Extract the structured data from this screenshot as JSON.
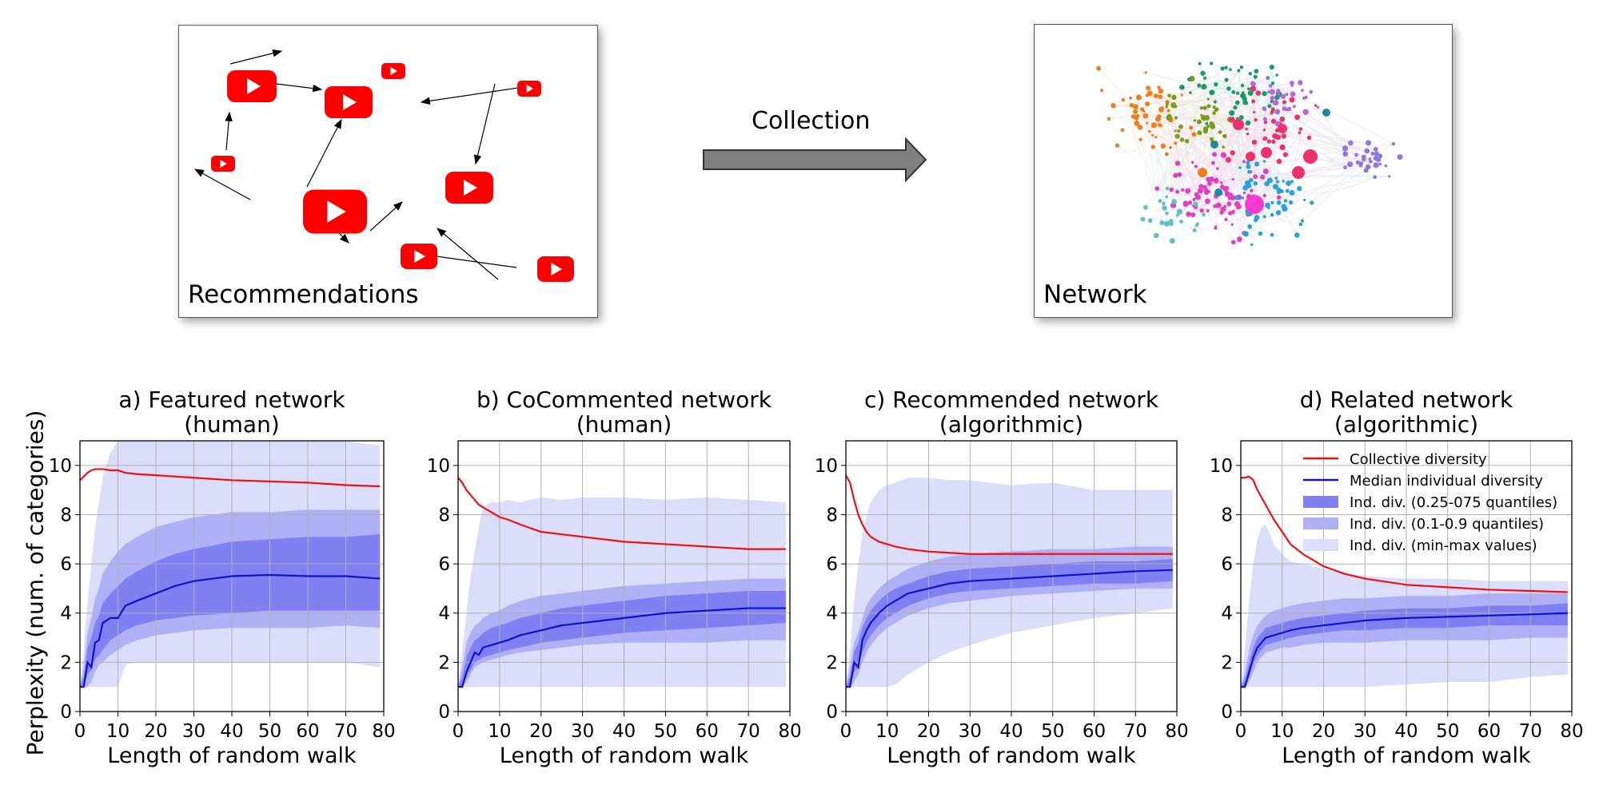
{
  "top": {
    "recommendations_label": "Recommendations",
    "network_label": "Network",
    "collection_label": "Collection"
  },
  "colors": {
    "collective": "#ee1111",
    "individual": "#1111cc",
    "band_quartile": "#8080f2",
    "band_decile": "#b0b0f6",
    "band_minmax": "#dcdcfb",
    "youtube_red": "#ff0000"
  },
  "ylabel": "Perplexity (num. of categories)",
  "legend": {
    "collective": "Collective diversity",
    "median": "Median individual diversity",
    "quartile": "Ind. div. (0.25-075 quantiles)",
    "decile": "Ind. div. (0.1-0.9 quantiles)",
    "minmax": "Ind. div. (min-max values)"
  },
  "chart_data": [
    {
      "type": "line",
      "title_line1": "a) Featured network",
      "title_line2": "(human)",
      "xlabel": "Length of random walk",
      "xlim": [
        0,
        80
      ],
      "ylim": [
        0,
        11
      ],
      "xticks": [
        0,
        10,
        20,
        30,
        40,
        50,
        60,
        70,
        80
      ],
      "yticks": [
        0,
        2,
        4,
        6,
        8,
        10
      ],
      "grid": true,
      "x": [
        0,
        1,
        2,
        3,
        4,
        5,
        6,
        8,
        10,
        12,
        15,
        20,
        25,
        30,
        40,
        50,
        60,
        70,
        79
      ],
      "series": [
        {
          "role": "collective",
          "values": [
            9.4,
            9.55,
            9.7,
            9.8,
            9.85,
            9.85,
            9.85,
            9.8,
            9.8,
            9.7,
            9.65,
            9.6,
            9.55,
            9.5,
            9.4,
            9.35,
            9.3,
            9.2,
            9.15
          ]
        },
        {
          "role": "median",
          "values": [
            1,
            1,
            2.0,
            1.8,
            2.8,
            2.9,
            3.6,
            3.8,
            3.8,
            4.3,
            4.5,
            4.8,
            5.1,
            5.3,
            5.5,
            5.55,
            5.5,
            5.5,
            5.4
          ]
        },
        {
          "role": "quartile",
          "lower": [
            1,
            1,
            1.5,
            1.7,
            2.1,
            2.3,
            2.5,
            2.9,
            3.1,
            3.3,
            3.5,
            3.7,
            3.8,
            3.9,
            4.0,
            4.1,
            4.1,
            4.1,
            4.1
          ],
          "upper": [
            1,
            1.4,
            2.6,
            3.0,
            3.6,
            3.9,
            4.4,
            4.8,
            5.1,
            5.4,
            5.7,
            6.1,
            6.4,
            6.6,
            6.9,
            7.0,
            7.1,
            7.1,
            7.2
          ]
        },
        {
          "role": "decile",
          "lower": [
            1,
            1,
            1,
            1.2,
            1.6,
            1.9,
            2.0,
            2.3,
            2.5,
            2.7,
            2.9,
            3.1,
            3.2,
            3.3,
            3.4,
            3.4,
            3.4,
            3.5,
            3.4
          ],
          "upper": [
            1,
            1.8,
            3.2,
            3.8,
            4.6,
            5.0,
            5.6,
            6.1,
            6.5,
            6.8,
            7.1,
            7.5,
            7.7,
            7.9,
            8.1,
            8.1,
            8.2,
            8.2,
            8.2
          ]
        },
        {
          "role": "minmax",
          "lower": [
            1,
            1,
            1,
            1,
            1,
            1,
            1,
            1,
            1,
            1.9,
            2,
            2,
            2,
            2,
            2,
            2,
            2,
            2,
            1.8
          ],
          "upper": [
            1,
            2.5,
            4.5,
            6,
            7.5,
            8.5,
            9.5,
            10.5,
            11,
            11,
            11,
            11,
            11,
            11,
            11,
            11,
            11,
            11,
            10.8
          ]
        }
      ]
    },
    {
      "type": "line",
      "title_line1": "b) CoCommented network",
      "title_line2": "(human)",
      "xlabel": "Length of random walk",
      "xlim": [
        0,
        80
      ],
      "ylim": [
        0,
        11
      ],
      "xticks": [
        0,
        10,
        20,
        30,
        40,
        50,
        60,
        70,
        80
      ],
      "yticks": [
        0,
        2,
        4,
        6,
        8,
        10
      ],
      "grid": true,
      "x": [
        0,
        1,
        2,
        3,
        4,
        5,
        6,
        8,
        10,
        12,
        15,
        20,
        25,
        30,
        40,
        50,
        60,
        70,
        79
      ],
      "series": [
        {
          "role": "collective",
          "values": [
            9.5,
            9.3,
            9.0,
            8.8,
            8.6,
            8.4,
            8.3,
            8.1,
            7.9,
            7.8,
            7.6,
            7.3,
            7.2,
            7.1,
            6.9,
            6.8,
            6.7,
            6.6,
            6.6
          ]
        },
        {
          "role": "median",
          "values": [
            1,
            1,
            1.6,
            2.0,
            2.4,
            2.3,
            2.6,
            2.7,
            2.8,
            2.9,
            3.1,
            3.3,
            3.5,
            3.6,
            3.8,
            4.0,
            4.1,
            4.2,
            4.2
          ]
        },
        {
          "role": "quartile",
          "lower": [
            1,
            1,
            1.4,
            1.7,
            2.0,
            2.1,
            2.2,
            2.3,
            2.4,
            2.5,
            2.6,
            2.8,
            2.9,
            3.0,
            3.2,
            3.3,
            3.4,
            3.5,
            3.6
          ],
          "upper": [
            1,
            1.4,
            2.2,
            2.6,
            2.9,
            3.0,
            3.2,
            3.4,
            3.5,
            3.6,
            3.8,
            4.0,
            4.2,
            4.3,
            4.5,
            4.7,
            4.8,
            4.9,
            4.9
          ]
        },
        {
          "role": "decile",
          "lower": [
            1,
            1,
            1.2,
            1.5,
            1.8,
            1.9,
            2.0,
            2.1,
            2.2,
            2.3,
            2.4,
            2.5,
            2.6,
            2.7,
            2.8,
            2.8,
            2.8,
            2.9,
            2.9
          ],
          "upper": [
            1,
            1.8,
            2.8,
            3.2,
            3.5,
            3.6,
            3.8,
            4.0,
            4.1,
            4.3,
            4.5,
            4.7,
            4.8,
            4.9,
            5.1,
            5.2,
            5.3,
            5.4,
            5.4
          ]
        },
        {
          "role": "minmax",
          "lower": [
            1,
            1,
            1,
            1,
            1,
            1,
            1,
            1,
            1,
            1,
            1,
            1,
            1,
            1,
            1,
            1,
            1,
            1,
            1
          ],
          "upper": [
            1,
            2.5,
            4,
            5.5,
            6.5,
            7.5,
            8.3,
            8.5,
            8.5,
            8.6,
            8.5,
            8.7,
            8.6,
            8.7,
            8.7,
            8.6,
            8.7,
            8.6,
            8.5
          ]
        }
      ]
    },
    {
      "type": "line",
      "title_line1": "c) Recommended network",
      "title_line2": "(algorithmic)",
      "xlabel": "Length of random walk",
      "xlim": [
        0,
        80
      ],
      "ylim": [
        0,
        11
      ],
      "xticks": [
        0,
        10,
        20,
        30,
        40,
        50,
        60,
        70,
        80
      ],
      "yticks": [
        0,
        2,
        4,
        6,
        8,
        10
      ],
      "grid": true,
      "x": [
        0,
        1,
        2,
        3,
        4,
        5,
        6,
        8,
        10,
        12,
        15,
        20,
        25,
        30,
        40,
        50,
        60,
        70,
        79
      ],
      "series": [
        {
          "role": "collective",
          "values": [
            9.6,
            9.3,
            8.6,
            8.0,
            7.6,
            7.3,
            7.1,
            6.9,
            6.8,
            6.7,
            6.6,
            6.5,
            6.45,
            6.4,
            6.4,
            6.4,
            6.4,
            6.4,
            6.4
          ]
        },
        {
          "role": "median",
          "values": [
            1,
            1,
            2.0,
            1.8,
            2.9,
            3.3,
            3.6,
            4.0,
            4.3,
            4.5,
            4.8,
            5.0,
            5.2,
            5.3,
            5.4,
            5.5,
            5.6,
            5.7,
            5.75
          ]
        },
        {
          "role": "quartile",
          "lower": [
            1,
            1,
            1.6,
            1.8,
            2.4,
            2.8,
            3.1,
            3.5,
            3.8,
            4.0,
            4.3,
            4.6,
            4.8,
            4.9,
            5.0,
            5.1,
            5.2,
            5.2,
            5.3
          ],
          "upper": [
            1,
            1.4,
            2.4,
            2.8,
            3.4,
            3.8,
            4.1,
            4.5,
            4.8,
            5.0,
            5.2,
            5.5,
            5.7,
            5.8,
            5.9,
            6.0,
            6.1,
            6.1,
            6.2
          ]
        },
        {
          "role": "decile",
          "lower": [
            1,
            1,
            1.2,
            1.5,
            2.0,
            2.4,
            2.7,
            3.1,
            3.4,
            3.6,
            3.9,
            4.2,
            4.4,
            4.5,
            4.7,
            4.8,
            4.9,
            5.0,
            5.0
          ],
          "upper": [
            1,
            1.8,
            2.8,
            3.2,
            3.8,
            4.3,
            4.6,
            5.0,
            5.3,
            5.5,
            5.8,
            6.1,
            6.3,
            6.4,
            6.5,
            6.6,
            6.6,
            6.7,
            6.7
          ]
        },
        {
          "role": "minmax",
          "lower": [
            1,
            1,
            1,
            1,
            1,
            1,
            1,
            1,
            1,
            1.1,
            1.5,
            2.0,
            2.4,
            2.7,
            3.2,
            3.5,
            3.8,
            4.0,
            4.2
          ],
          "upper": [
            1,
            2.5,
            4.5,
            6,
            7.2,
            8,
            8.5,
            9,
            9.2,
            9.3,
            9.5,
            9.5,
            9.4,
            9.4,
            9.2,
            9.3,
            9.0,
            9.0,
            9.0
          ]
        }
      ]
    },
    {
      "type": "line",
      "title_line1": "d) Related network",
      "title_line2": "(algorithmic)",
      "xlabel": "Length of random walk",
      "xlim": [
        0,
        80
      ],
      "ylim": [
        0,
        11
      ],
      "xticks": [
        0,
        10,
        20,
        30,
        40,
        50,
        60,
        70,
        80
      ],
      "yticks": [
        0,
        2,
        4,
        6,
        8,
        10
      ],
      "grid": true,
      "legend_position": "top-right",
      "x": [
        0,
        1,
        2,
        3,
        4,
        5,
        6,
        8,
        10,
        12,
        15,
        20,
        25,
        30,
        40,
        50,
        60,
        70,
        79
      ],
      "series": [
        {
          "role": "collective",
          "values": [
            9.5,
            9.5,
            9.55,
            9.4,
            9.0,
            8.7,
            8.4,
            7.8,
            7.3,
            6.8,
            6.4,
            5.9,
            5.6,
            5.4,
            5.15,
            5.05,
            4.95,
            4.9,
            4.85
          ]
        },
        {
          "role": "median",
          "values": [
            1,
            1,
            1.6,
            2.2,
            2.6,
            2.8,
            3.0,
            3.1,
            3.2,
            3.3,
            3.4,
            3.5,
            3.6,
            3.7,
            3.8,
            3.85,
            3.9,
            3.95,
            4.0
          ]
        },
        {
          "role": "quartile",
          "lower": [
            1,
            1,
            1.4,
            1.9,
            2.3,
            2.5,
            2.7,
            2.8,
            2.9,
            3.0,
            3.1,
            3.2,
            3.3,
            3.3,
            3.4,
            3.4,
            3.5,
            3.5,
            3.5
          ],
          "upper": [
            1,
            1.3,
            2.0,
            2.6,
            3.0,
            3.2,
            3.4,
            3.5,
            3.6,
            3.7,
            3.8,
            3.9,
            4.0,
            4.1,
            4.2,
            4.2,
            4.3,
            4.3,
            4.4
          ]
        },
        {
          "role": "decile",
          "lower": [
            1,
            1,
            1.2,
            1.6,
            2.0,
            2.2,
            2.4,
            2.5,
            2.6,
            2.6,
            2.7,
            2.8,
            2.8,
            2.8,
            2.9,
            2.9,
            2.9,
            3.0,
            3.0
          ],
          "upper": [
            1,
            1.6,
            2.5,
            3.1,
            3.5,
            3.7,
            3.9,
            4.1,
            4.2,
            4.3,
            4.4,
            4.5,
            4.6,
            4.6,
            4.7,
            4.7,
            4.8,
            4.8,
            4.8
          ]
        },
        {
          "role": "minmax",
          "lower": [
            1,
            1,
            1,
            1,
            1,
            1,
            1,
            1,
            1,
            1,
            1,
            1,
            1,
            1,
            1.1,
            1.2,
            1.2,
            1.4,
            1.5
          ],
          "upper": [
            1,
            2.5,
            4.5,
            6,
            7,
            7.5,
            7.6,
            6.8,
            6.4,
            6.1,
            6.0,
            5.8,
            5.6,
            5.5,
            5.4,
            5.4,
            5.3,
            5.3,
            5.3
          ]
        }
      ]
    }
  ]
}
